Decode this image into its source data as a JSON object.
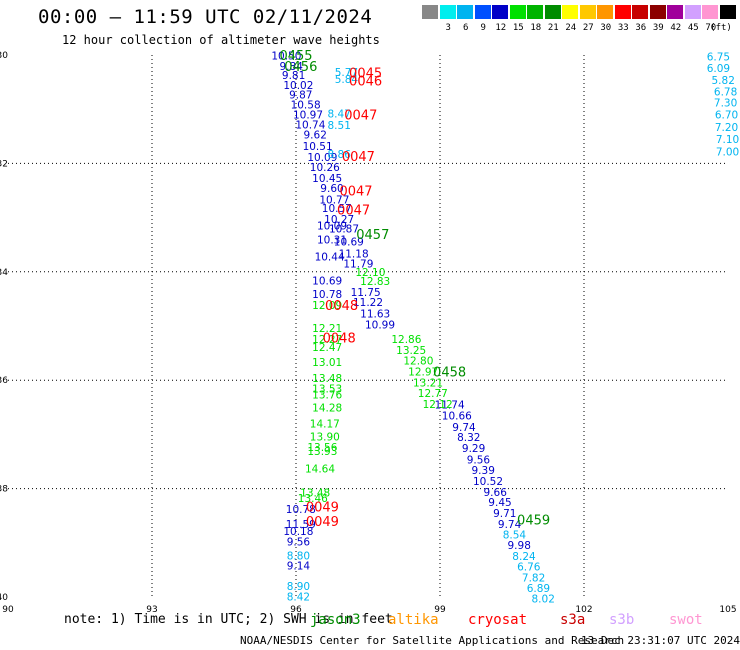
{
  "title": "00:00 – 11:59 UTC 02/11/2024",
  "subtitle": "12 hour collection of altimeter wave heights",
  "legend": {
    "unit": "(ft)",
    "bins": [
      {
        "label": "",
        "color": "#888888"
      },
      {
        "label": "3",
        "color": "#00eeee"
      },
      {
        "label": "6",
        "color": "#00b4f0"
      },
      {
        "label": "9",
        "color": "#0050ff"
      },
      {
        "label": "12",
        "color": "#0000c8"
      },
      {
        "label": "15",
        "color": "#00e000"
      },
      {
        "label": "18",
        "color": "#00b400"
      },
      {
        "label": "21",
        "color": "#008c00"
      },
      {
        "label": "24",
        "color": "#ffff00"
      },
      {
        "label": "27",
        "color": "#ffc800"
      },
      {
        "label": "30",
        "color": "#ff9600"
      },
      {
        "label": "33",
        "color": "#ff0000"
      },
      {
        "label": "36",
        "color": "#c80000"
      },
      {
        "label": "39",
        "color": "#8c0000"
      },
      {
        "label": "42",
        "color": "#a0009b"
      },
      {
        "label": "45",
        "color": "#d2a0ff"
      },
      {
        "label": "70",
        "color": "#ff96d2"
      },
      {
        "label": "",
        "color": "#000000"
      }
    ]
  },
  "note": "note: 1) Time is in UTC; 2) SWH is in feet",
  "satellites": [
    {
      "name": "jason3",
      "color": "#008c00"
    },
    {
      "name": "altika",
      "color": "#ff9600"
    },
    {
      "name": "cryosat",
      "color": "#ff0000"
    },
    {
      "name": "s3a",
      "color": "#c80000"
    },
    {
      "name": "s3b",
      "color": "#d2a0ff"
    },
    {
      "name": "swot",
      "color": "#ff96d2"
    }
  ],
  "credit": "NOAA/NESDIS Center for Satellite Applications and Research",
  "timestamp": "13 Dec 23:31:07 UTC 2024",
  "chart_data": {
    "type": "scatter",
    "title": "12 hour collection of altimeter wave heights",
    "xlim": [
      90,
      105
    ],
    "ylim": [
      -40,
      -30
    ],
    "xticks": [
      {
        "v": 90,
        "l": "90"
      },
      {
        "v": 93,
        "l": "93"
      },
      {
        "v": 96,
        "l": "96"
      },
      {
        "v": 99,
        "l": "99"
      },
      {
        "v": 102,
        "l": "102"
      },
      {
        "v": 105,
        "l": "105"
      }
    ],
    "yticks": [
      {
        "v": -30,
        "l": "-30"
      },
      {
        "v": -32,
        "l": "-32"
      },
      {
        "v": -34,
        "l": "-34"
      },
      {
        "v": -36,
        "l": "-36"
      },
      {
        "v": -38,
        "l": "-38"
      },
      {
        "v": -40,
        "l": "-40"
      }
    ],
    "grid": true,
    "points": [
      {
        "x": 95.8,
        "y": -30.01,
        "t": "10.50",
        "c": "#0000c8"
      },
      {
        "x": 95.9,
        "y": -30.2,
        "t": "9.84",
        "c": "#0000c8"
      },
      {
        "x": 95.95,
        "y": -30.37,
        "t": "9.81",
        "c": "#0000c8"
      },
      {
        "x": 96.05,
        "y": -30.55,
        "t": "10.02",
        "c": "#0000c8"
      },
      {
        "x": 96.1,
        "y": -30.73,
        "t": "9.87",
        "c": "#0000c8"
      },
      {
        "x": 96.2,
        "y": -30.91,
        "t": "10.58",
        "c": "#0000c8"
      },
      {
        "x": 96.25,
        "y": -31.1,
        "t": "10.97",
        "c": "#0000c8"
      },
      {
        "x": 96.3,
        "y": -31.28,
        "t": "10.74",
        "c": "#0000c8"
      },
      {
        "x": 96.4,
        "y": -31.47,
        "t": "9.62",
        "c": "#0000c8"
      },
      {
        "x": 96.45,
        "y": -31.68,
        "t": "10.51",
        "c": "#0000c8"
      },
      {
        "x": 96.55,
        "y": -31.88,
        "t": "10.09",
        "c": "#0000c8"
      },
      {
        "x": 96.6,
        "y": -32.07,
        "t": "10.26",
        "c": "#0000c8"
      },
      {
        "x": 96.65,
        "y": -32.27,
        "t": "10.45",
        "c": "#0000c8"
      },
      {
        "x": 96.75,
        "y": -32.45,
        "t": "9.60",
        "c": "#0000c8"
      },
      {
        "x": 96.8,
        "y": -32.67,
        "t": "10.77",
        "c": "#0000c8"
      },
      {
        "x": 96.85,
        "y": -32.82,
        "t": "10.57",
        "c": "#0000c8"
      },
      {
        "x": 96.9,
        "y": -33.03,
        "t": "10.27",
        "c": "#0000c8"
      },
      {
        "x": 96.75,
        "y": -33.15,
        "t": "10.09",
        "c": "#0000c8"
      },
      {
        "x": 97.0,
        "y": -33.2,
        "t": "10.87",
        "c": "#0000c8"
      },
      {
        "x": 96.75,
        "y": -33.4,
        "t": "10.31",
        "c": "#0000c8"
      },
      {
        "x": 97.1,
        "y": -33.44,
        "t": "10.69",
        "c": "#0000c8"
      },
      {
        "x": 96.7,
        "y": -33.72,
        "t": "10.44",
        "c": "#0000c8"
      },
      {
        "x": 97.2,
        "y": -33.66,
        "t": "11.18",
        "c": "#0000c8"
      },
      {
        "x": 97.3,
        "y": -33.85,
        "t": "11.79",
        "c": "#0000c8"
      },
      {
        "x": 96.65,
        "y": -34.16,
        "t": "10.69",
        "c": "#0000c8"
      },
      {
        "x": 97.45,
        "y": -34.37,
        "t": "11.75",
        "c": "#0000c8"
      },
      {
        "x": 96.65,
        "y": -34.41,
        "t": "10.78",
        "c": "#0000c8"
      },
      {
        "x": 97.5,
        "y": -34.56,
        "t": "11.22",
        "c": "#0000c8"
      },
      {
        "x": 97.65,
        "y": -34.77,
        "t": "11.63",
        "c": "#0000c8"
      },
      {
        "x": 97.75,
        "y": -34.97,
        "t": "10.99",
        "c": "#0000c8"
      },
      {
        "x": 99.2,
        "y": -36.45,
        "t": "11.74",
        "c": "#0000c8"
      },
      {
        "x": 99.35,
        "y": -36.65,
        "t": "10.66",
        "c": "#0000c8"
      },
      {
        "x": 99.5,
        "y": -36.86,
        "t": "9.74",
        "c": "#0000c8"
      },
      {
        "x": 99.6,
        "y": -37.05,
        "t": "8.32",
        "c": "#0000c8"
      },
      {
        "x": 99.7,
        "y": -37.25,
        "t": "9.29",
        "c": "#0000c8"
      },
      {
        "x": 99.8,
        "y": -37.46,
        "t": "9.56",
        "c": "#0000c8"
      },
      {
        "x": 99.9,
        "y": -37.66,
        "t": "9.39",
        "c": "#0000c8"
      },
      {
        "x": 100.0,
        "y": -37.86,
        "t": "10.52",
        "c": "#0000c8"
      },
      {
        "x": 100.15,
        "y": -38.06,
        "t": "9.66",
        "c": "#0000c8"
      },
      {
        "x": 100.25,
        "y": -38.25,
        "t": "9.45",
        "c": "#0000c8"
      },
      {
        "x": 100.35,
        "y": -38.45,
        "t": "9.71",
        "c": "#0000c8"
      },
      {
        "x": 100.45,
        "y": -38.65,
        "t": "9.74",
        "c": "#0000c8"
      },
      {
        "x": 100.65,
        "y": -39.04,
        "t": "9.98",
        "c": "#0000c8"
      },
      {
        "x": 96.1,
        "y": -38.38,
        "t": "10.78",
        "c": "#0000c8"
      },
      {
        "x": 96.1,
        "y": -38.65,
        "t": "11.59",
        "c": "#0000c8"
      },
      {
        "x": 96.05,
        "y": -38.78,
        "t": "10.18",
        "c": "#0000c8"
      },
      {
        "x": 96.05,
        "y": -38.98,
        "t": "9.56",
        "c": "#0000c8"
      },
      {
        "x": 96.05,
        "y": -39.42,
        "t": "9.14",
        "c": "#0000c8"
      },
      {
        "x": 97.05,
        "y": -30.31,
        "t": "5.77",
        "c": "#00b4f0"
      },
      {
        "x": 97.05,
        "y": -30.44,
        "t": "5.84",
        "c": "#00b4f0"
      },
      {
        "x": 96.9,
        "y": -31.08,
        "t": "8.47",
        "c": "#00b4f0"
      },
      {
        "x": 96.9,
        "y": -31.29,
        "t": "8.51",
        "c": "#00b4f0"
      },
      {
        "x": 96.9,
        "y": -31.83,
        "t": "8.86",
        "c": "#00b4f0"
      },
      {
        "x": 100.55,
        "y": -38.85,
        "t": "8.54",
        "c": "#00b4f0"
      },
      {
        "x": 100.75,
        "y": -39.24,
        "t": "8.24",
        "c": "#00b4f0"
      },
      {
        "x": 100.85,
        "y": -39.44,
        "t": "6.76",
        "c": "#00b4f0"
      },
      {
        "x": 100.95,
        "y": -39.64,
        "t": "7.82",
        "c": "#00b4f0"
      },
      {
        "x": 101.05,
        "y": -39.83,
        "t": "6.89",
        "c": "#00b4f0"
      },
      {
        "x": 101.15,
        "y": -40.03,
        "t": "8.02",
        "c": "#00b4f0"
      },
      {
        "x": 96.05,
        "y": -39.23,
        "t": "8.80",
        "c": "#00b4f0"
      },
      {
        "x": 96.05,
        "y": -39.8,
        "t": "8.90",
        "c": "#00b4f0"
      },
      {
        "x": 96.05,
        "y": -39.99,
        "t": "8.42",
        "c": "#00b4f0"
      },
      {
        "x": 104.8,
        "y": -30.03,
        "t": "6.75",
        "c": "#00b4f0"
      },
      {
        "x": 104.8,
        "y": -30.24,
        "t": "6.09",
        "c": "#00b4f0"
      },
      {
        "x": 104.9,
        "y": -30.46,
        "t": "5.82",
        "c": "#00b4f0"
      },
      {
        "x": 104.95,
        "y": -30.67,
        "t": "6.78",
        "c": "#00b4f0"
      },
      {
        "x": 104.95,
        "y": -30.88,
        "t": "7.30",
        "c": "#00b4f0"
      },
      {
        "x": 104.97,
        "y": -31.1,
        "t": "6.70",
        "c": "#00b4f0"
      },
      {
        "x": 104.97,
        "y": -31.33,
        "t": "7.20",
        "c": "#00b4f0"
      },
      {
        "x": 104.99,
        "y": -31.55,
        "t": "7.10",
        "c": "#00b4f0"
      },
      {
        "x": 104.99,
        "y": -31.78,
        "t": "7.00",
        "c": "#00b4f0"
      },
      {
        "x": 97.55,
        "y": -34.0,
        "t": "12.10",
        "c": "#00e000"
      },
      {
        "x": 97.65,
        "y": -34.17,
        "t": "12.83",
        "c": "#00e000"
      },
      {
        "x": 96.65,
        "y": -34.61,
        "t": "12.09",
        "c": "#00e000"
      },
      {
        "x": 96.65,
        "y": -35.04,
        "t": "12.21",
        "c": "#00e000"
      },
      {
        "x": 96.65,
        "y": -35.24,
        "t": "12.27",
        "c": "#00e000"
      },
      {
        "x": 96.65,
        "y": -35.39,
        "t": "12.47",
        "c": "#00e000"
      },
      {
        "x": 96.65,
        "y": -35.66,
        "t": "13.01",
        "c": "#00e000"
      },
      {
        "x": 96.65,
        "y": -35.96,
        "t": "13.48",
        "c": "#00e000"
      },
      {
        "x": 96.65,
        "y": -36.15,
        "t": "13.53",
        "c": "#00e000"
      },
      {
        "x": 96.65,
        "y": -36.26,
        "t": "13.76",
        "c": "#00e000"
      },
      {
        "x": 96.65,
        "y": -36.5,
        "t": "14.28",
        "c": "#00e000"
      },
      {
        "x": 96.6,
        "y": -36.8,
        "t": "14.17",
        "c": "#00e000"
      },
      {
        "x": 96.6,
        "y": -37.04,
        "t": "13.90",
        "c": "#00e000"
      },
      {
        "x": 96.55,
        "y": -37.23,
        "t": "13.56",
        "c": "#00e000"
      },
      {
        "x": 96.55,
        "y": -37.31,
        "t": "13.93",
        "c": "#00e000"
      },
      {
        "x": 96.5,
        "y": -37.63,
        "t": "14.64",
        "c": "#00e000"
      },
      {
        "x": 96.4,
        "y": -38.07,
        "t": "13.48",
        "c": "#00e000"
      },
      {
        "x": 96.35,
        "y": -38.17,
        "t": "13.46",
        "c": "#00e000"
      },
      {
        "x": 98.3,
        "y": -35.24,
        "t": "12.86",
        "c": "#00e000"
      },
      {
        "x": 98.4,
        "y": -35.44,
        "t": "13.25",
        "c": "#00e000"
      },
      {
        "x": 98.55,
        "y": -35.64,
        "t": "12.80",
        "c": "#00e000"
      },
      {
        "x": 98.65,
        "y": -35.84,
        "t": "12.97",
        "c": "#00e000"
      },
      {
        "x": 98.75,
        "y": -36.04,
        "t": "13.21",
        "c": "#00e000"
      },
      {
        "x": 98.85,
        "y": -36.24,
        "t": "12.77",
        "c": "#00e000"
      },
      {
        "x": 98.95,
        "y": -36.44,
        "t": "12.12",
        "c": "#00e000"
      },
      {
        "x": 96.0,
        "y": -30.0,
        "t": "0455",
        "c": "#008c00",
        "big": true
      },
      {
        "x": 96.1,
        "y": -30.2,
        "t": "0456",
        "c": "#008c00",
        "big": true
      },
      {
        "x": 97.6,
        "y": -33.3,
        "t": "0457",
        "c": "#008c00",
        "big": true
      },
      {
        "x": 99.2,
        "y": -35.84,
        "t": "0458",
        "c": "#008c00",
        "big": true
      },
      {
        "x": 100.95,
        "y": -38.57,
        "t": "0459",
        "c": "#008c00",
        "big": true
      },
      {
        "x": 97.45,
        "y": -30.32,
        "t": "0045",
        "c": "#ff0000",
        "big": true
      },
      {
        "x": 97.45,
        "y": -30.47,
        "t": "0046",
        "c": "#ff0000",
        "big": true
      },
      {
        "x": 97.35,
        "y": -31.1,
        "t": "0047",
        "c": "#ff0000",
        "big": true
      },
      {
        "x": 97.3,
        "y": -31.86,
        "t": "0047",
        "c": "#ff0000",
        "big": true
      },
      {
        "x": 97.25,
        "y": -32.5,
        "t": "0047",
        "c": "#ff0000",
        "big": true
      },
      {
        "x": 97.2,
        "y": -32.85,
        "t": "0047",
        "c": "#ff0000",
        "big": true
      },
      {
        "x": 96.95,
        "y": -34.61,
        "t": "0048",
        "c": "#ff0000",
        "big": true
      },
      {
        "x": 96.9,
        "y": -35.21,
        "t": "0048",
        "c": "#ff0000",
        "big": true
      },
      {
        "x": 96.55,
        "y": -38.33,
        "t": "0049",
        "c": "#ff0000",
        "big": true
      },
      {
        "x": 96.55,
        "y": -38.6,
        "t": "0049",
        "c": "#ff0000",
        "big": true
      }
    ]
  }
}
